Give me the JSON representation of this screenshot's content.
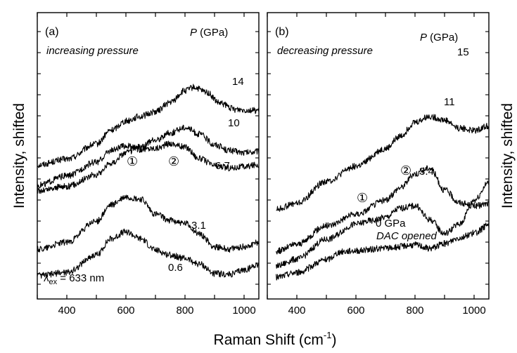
{
  "figure": {
    "xlabel": "Raman Shift (cm",
    "xlabel_sup": "-1",
    "xlabel_close": ")",
    "ylabel_left": "Intensity, shifted",
    "ylabel_right": "Intensity, shifted"
  },
  "chart_data": [
    {
      "type": "line",
      "panel_label": "(a)",
      "subtitle": "increasing pressure",
      "legend_title_symbol": "P",
      "legend_title_unit": " (GPa)",
      "excitation_text": "λ",
      "excitation_sub": "ex",
      "excitation_value": " = 633 nm",
      "xlim": [
        300,
        1050
      ],
      "xticks": [
        400,
        600,
        800,
        1000
      ],
      "yaxis_values_shown": false,
      "annotations": [
        "①",
        "②"
      ],
      "series": [
        {
          "name": "14",
          "x": [
            300,
            400,
            500,
            550,
            600,
            650,
            700,
            750,
            800,
            830,
            870,
            920,
            970,
            1050
          ],
          "y": [
            0.0,
            0.5,
            1.8,
            3.0,
            3.8,
            4.2,
            4.6,
            5.4,
            6.4,
            6.7,
            6.3,
            5.3,
            4.8,
            4.7
          ]
        },
        {
          "name": "10",
          "x": [
            300,
            400,
            500,
            550,
            600,
            650,
            700,
            750,
            800,
            850,
            900,
            950,
            1000,
            1050
          ],
          "y": [
            0.0,
            0.4,
            1.4,
            2.4,
            3.3,
            3.8,
            4.4,
            5.0,
            5.5,
            4.9,
            4.0,
            3.5,
            3.3,
            3.4
          ]
        },
        {
          "name": "6.7",
          "x": [
            300,
            400,
            500,
            550,
            600,
            650,
            700,
            750,
            800,
            850,
            900,
            950,
            1000,
            1050
          ],
          "y": [
            0.0,
            0.8,
            2.0,
            3.0,
            3.4,
            3.1,
            3.2,
            3.6,
            3.3,
            2.3,
            1.7,
            1.5,
            1.6,
            1.8
          ]
        },
        {
          "name": "3.1",
          "x": [
            300,
            400,
            500,
            550,
            600,
            650,
            700,
            750,
            800,
            850,
            900,
            950,
            1000,
            1050
          ],
          "y": [
            0.0,
            0.6,
            2.4,
            3.8,
            4.5,
            4.3,
            3.0,
            2.5,
            2.2,
            1.3,
            0.2,
            0.0,
            0.2,
            0.6
          ]
        },
        {
          "name": "0.6",
          "x": [
            300,
            400,
            500,
            550,
            600,
            650,
            700,
            750,
            800,
            850,
            900,
            950,
            1000,
            1050
          ],
          "y": [
            0.0,
            0.3,
            1.8,
            3.2,
            3.8,
            3.2,
            2.2,
            1.8,
            1.5,
            1.0,
            0.2,
            0.1,
            0.5,
            1.0
          ]
        }
      ]
    },
    {
      "type": "line",
      "panel_label": "(b)",
      "subtitle": "decreasing pressure",
      "legend_title_symbol": "P",
      "legend_title_unit": " (GPa)",
      "xlim": [
        300,
        1050
      ],
      "xticks": [
        400,
        600,
        800,
        1000
      ],
      "yaxis_values_shown": false,
      "annotations": [
        "①",
        "②",
        "DAC opened"
      ],
      "series": [
        {
          "name": "15",
          "x": [
            330,
            400,
            500,
            600,
            700,
            750,
            800,
            850,
            900,
            950,
            1000,
            1050
          ],
          "y": [
            0.0,
            0.5,
            2.4,
            3.7,
            5.2,
            6.3,
            7.5,
            8.0,
            7.7,
            7.0,
            6.8,
            7.2
          ]
        },
        {
          "name": "11",
          "x": [
            330,
            400,
            500,
            600,
            700,
            750,
            800,
            850,
            900,
            950,
            1000,
            1050
          ],
          "y": [
            0.0,
            0.6,
            2.2,
            3.2,
            4.4,
            5.5,
            6.7,
            7.2,
            5.3,
            4.2,
            3.9,
            4.1
          ]
        },
        {
          "name": "3.4",
          "x": [
            330,
            400,
            500,
            600,
            650,
            700,
            750,
            800,
            850,
            900,
            950,
            1000,
            1050
          ],
          "y": [
            0.0,
            0.6,
            2.3,
            3.6,
            3.9,
            4.2,
            5.0,
            5.2,
            4.0,
            2.8,
            3.6,
            5.7,
            7.2
          ]
        },
        {
          "name": "0 GPa",
          "x": [
            330,
            400,
            500,
            550,
            600,
            700,
            800,
            850,
            900,
            950,
            1000,
            1050
          ],
          "y": [
            0.0,
            0.4,
            1.5,
            2.2,
            2.3,
            2.5,
            2.8,
            2.5,
            2.9,
            3.4,
            3.8,
            4.5
          ]
        }
      ]
    }
  ]
}
